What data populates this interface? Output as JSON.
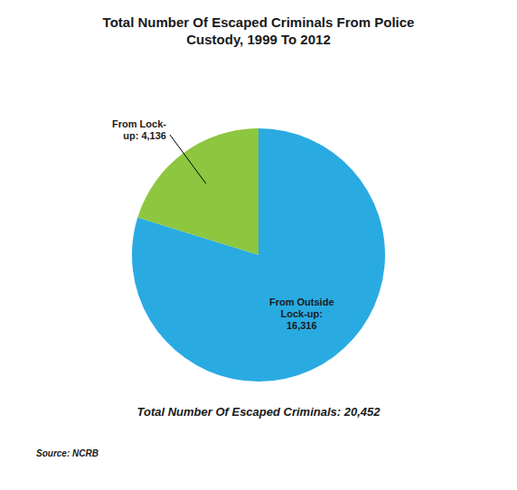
{
  "chart_data": {
    "type": "pie",
    "title": "Total Number Of Escaped Criminals From Police\nCustody, 1999 To 2012",
    "categories": [
      "From Outside\nLock-up:\n16,316",
      "From Lock-\nup: 4,136"
    ],
    "values": [
      16316,
      4136
    ],
    "colors": [
      "#29ABE2",
      "#8DC63F"
    ],
    "annotations": [
      "Total Number Of Escaped Criminals: 20,452",
      "Source: NCRB"
    ]
  }
}
